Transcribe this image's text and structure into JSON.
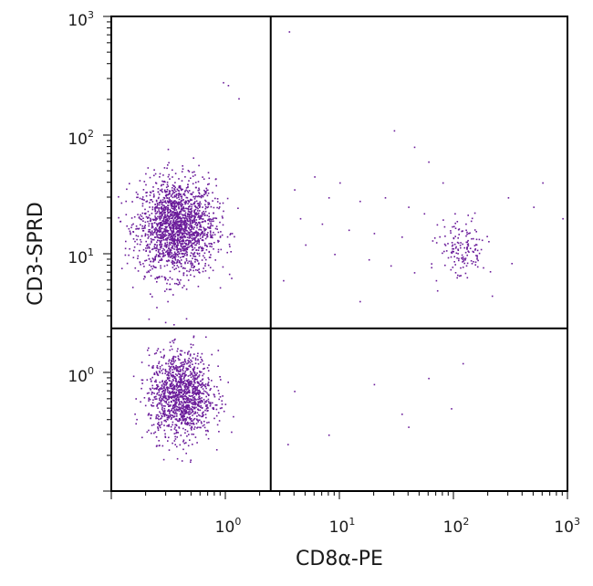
{
  "chart_data": {
    "type": "scatter",
    "title": "",
    "xlabel": "CD8α-PE",
    "ylabel": "CD3-SPRD",
    "xscale": "log",
    "yscale": "log",
    "xlim": [
      0.1,
      1000
    ],
    "ylim": [
      0.1,
      1000
    ],
    "x_ticks": [
      {
        "base": "10",
        "exp": "0",
        "value": 1
      },
      {
        "base": "10",
        "exp": "1",
        "value": 10
      },
      {
        "base": "10",
        "exp": "2",
        "value": 100
      },
      {
        "base": "10",
        "exp": "3",
        "value": 1000
      }
    ],
    "y_ticks": [
      {
        "base": "10",
        "exp": "0",
        "value": 1
      },
      {
        "base": "10",
        "exp": "1",
        "value": 10
      },
      {
        "base": "10",
        "exp": "2",
        "value": 100
      },
      {
        "base": "10",
        "exp": "3",
        "value": 1000
      }
    ],
    "quadrant_gates": {
      "x": 2.5,
      "y": 2.35
    },
    "point_color": "#6a1b9a",
    "populations": [
      {
        "center": [
          0.37,
          17
        ],
        "count": 1900,
        "spread_log": [
          0.17,
          0.2
        ]
      },
      {
        "center": [
          0.4,
          0.65
        ],
        "count": 1300,
        "spread_log": [
          0.14,
          0.18
        ]
      },
      {
        "center": [
          120,
          11
        ],
        "count": 150,
        "spread_log": [
          0.1,
          0.13
        ]
      }
    ],
    "sparse_points": [
      [
        3.6,
        750
      ],
      [
        0.95,
        280
      ],
      [
        1.05,
        265
      ],
      [
        1.3,
        205
      ],
      [
        30,
        110
      ],
      [
        45,
        80
      ],
      [
        60,
        60
      ],
      [
        80,
        40
      ],
      [
        6,
        45
      ],
      [
        10,
        40
      ],
      [
        4,
        35
      ],
      [
        8,
        30
      ],
      [
        15,
        28
      ],
      [
        25,
        30
      ],
      [
        40,
        25
      ],
      [
        55,
        22
      ],
      [
        4.5,
        20
      ],
      [
        7,
        18
      ],
      [
        12,
        16
      ],
      [
        20,
        15
      ],
      [
        35,
        14
      ],
      [
        65,
        13
      ],
      [
        5,
        12
      ],
      [
        9,
        10
      ],
      [
        18,
        9
      ],
      [
        28,
        8
      ],
      [
        45,
        7
      ],
      [
        3.2,
        6
      ],
      [
        70,
        6
      ],
      [
        15,
        4
      ],
      [
        300,
        30
      ],
      [
        500,
        25
      ],
      [
        900,
        20
      ],
      [
        600,
        40
      ],
      [
        35,
        0.45
      ],
      [
        20,
        0.8
      ],
      [
        60,
        0.9
      ],
      [
        120,
        1.2
      ],
      [
        8,
        0.3
      ],
      [
        40,
        0.35
      ],
      [
        3.5,
        0.25
      ],
      [
        4,
        0.7
      ],
      [
        95,
        0.5
      ]
    ]
  }
}
